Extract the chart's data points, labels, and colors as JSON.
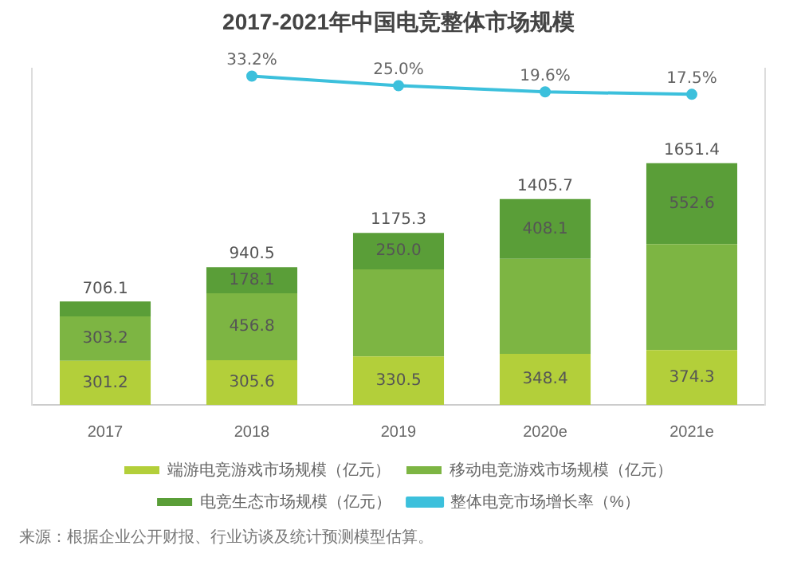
{
  "chart_data": {
    "type": "bar",
    "title": "2017-2021年中国电竞整体市场规模",
    "categories": [
      "2017",
      "2018",
      "2019",
      "2020e",
      "2021e"
    ],
    "stacked": true,
    "ylim": [
      0,
      2300
    ],
    "y2lim": [
      -250,
      40
    ],
    "tick_labels": "x",
    "legend": "bottom",
    "grid": false,
    "marker": "circle",
    "series": [
      {
        "name": "端游电竞游戏市场规模（亿元）",
        "color": "#b3cf3a",
        "values": [
          301.2,
          305.6,
          330.5,
          348.4,
          374.3
        ],
        "value_labels": [
          "301.2",
          "305.6",
          "330.5",
          "348.4",
          "374.3"
        ]
      },
      {
        "name": "移动电竞游戏市场规模（亿元）",
        "color": "#7db543",
        "values": [
          303.2,
          456.8,
          594.8,
          649.2,
          724.5
        ],
        "value_labels": [
          "303.2",
          "456.8",
          null,
          null,
          null
        ]
      },
      {
        "name": "电竞生态市场规模（亿元）",
        "color": "#5a9e38",
        "values": [
          101.7,
          178.1,
          250.0,
          408.1,
          552.6
        ],
        "value_labels": [
          null,
          "178.1",
          "250.0",
          "408.1",
          "552.6"
        ]
      },
      {
        "name": "整体电竞市场增长率（%）",
        "type": "line",
        "axis": "y2",
        "color": "#3cc0dc",
        "values": [
          null,
          33.2,
          25.0,
          19.6,
          17.5
        ],
        "value_labels": [
          null,
          "33.2%",
          "25.0%",
          "19.6%",
          "17.5%"
        ]
      }
    ],
    "totals": [
      "706.1",
      "940.5",
      "1175.3",
      "1405.7",
      "1651.4"
    ],
    "annotations": [
      "来源：根据企业公开财报、行业访谈及统计预测模型估算。"
    ]
  }
}
